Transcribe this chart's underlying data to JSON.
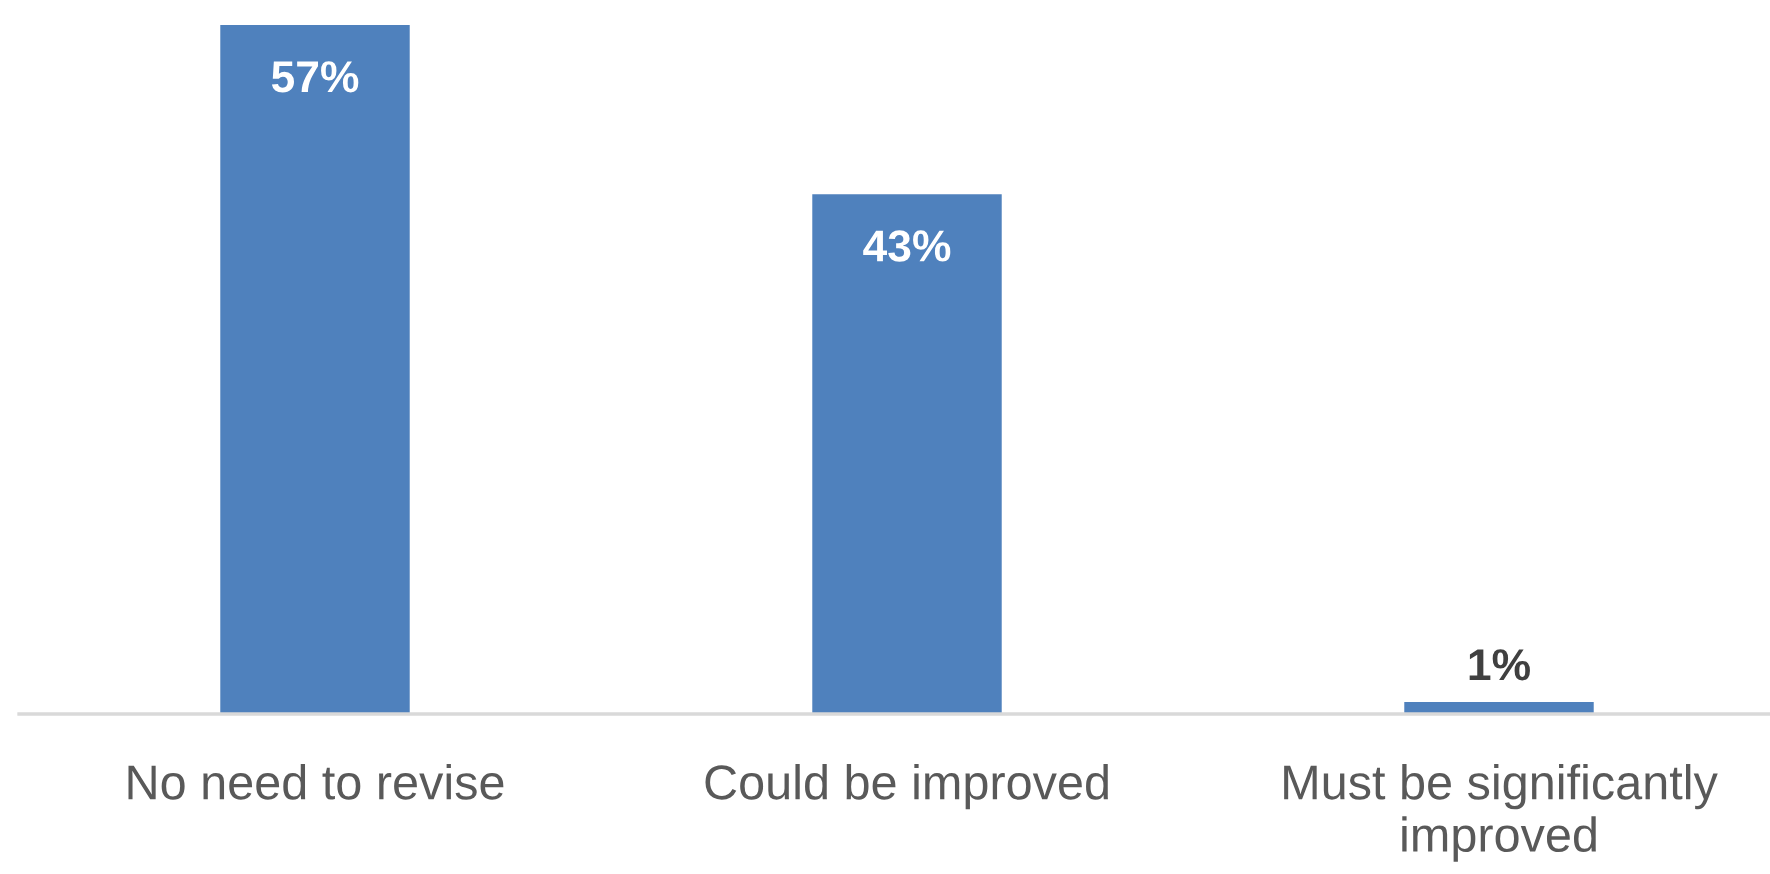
{
  "chart_data": {
    "type": "bar",
    "categories": [
      "No need to revise",
      "Could be improved",
      "Must be significantly improved"
    ],
    "values": [
      57,
      43,
      1
    ],
    "value_labels": [
      "57%",
      "43%",
      "1%"
    ],
    "color": "#4f81bd",
    "tick_labels": "x"
  }
}
